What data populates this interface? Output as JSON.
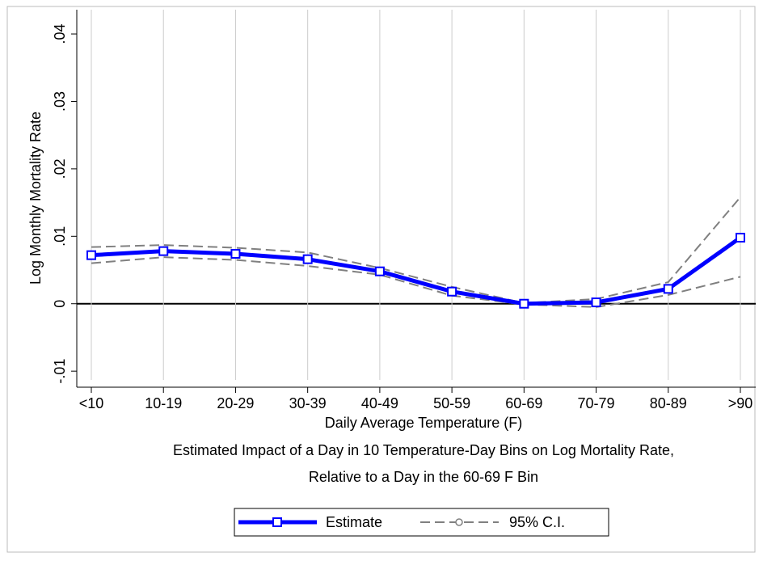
{
  "chart_data": {
    "type": "line",
    "xlabel": "Daily Average Temperature (F)",
    "ylabel": "Log Monthly Mortality Rate",
    "notes": [
      "Estimated Impact of a Day in 10 Temperature-Day Bins on Log Mortality Rate,",
      "Relative to a Day in the 60-69 F Bin"
    ],
    "categories": [
      "<10",
      "10-19",
      "20-29",
      "30-39",
      "40-49",
      "50-59",
      "60-69",
      "70-79",
      "80-89",
      ">90"
    ],
    "series": [
      {
        "name": "Estimate",
        "color": "#0000ff",
        "values": [
          0.0072,
          0.0078,
          0.0074,
          0.0066,
          0.0048,
          0.0018,
          0,
          0.0002,
          0.0022,
          0.0098
        ]
      },
      {
        "name": "95% C.I.",
        "color": "#808080",
        "upper": [
          0.0084,
          0.0087,
          0.0083,
          0.0076,
          0.0053,
          0.0025,
          0.0001,
          0.0007,
          0.0032,
          0.0158
        ],
        "lower": [
          0.006,
          0.0069,
          0.0065,
          0.0056,
          0.0043,
          0.0012,
          -0.0001,
          -0.0005,
          0.0013,
          0.004
        ]
      }
    ],
    "ylim": [
      -0.0113,
      0.0436
    ],
    "yticks": [
      {
        "value": -0.01,
        "label": "-.01"
      },
      0,
      {
        "value": 0.01,
        "label": ".01"
      },
      {
        "value": 0.02,
        "label": ".02"
      },
      {
        "value": 0.03,
        "label": ".03"
      },
      {
        "value": 0.04,
        "label": ".04"
      }
    ],
    "grid": true
  }
}
